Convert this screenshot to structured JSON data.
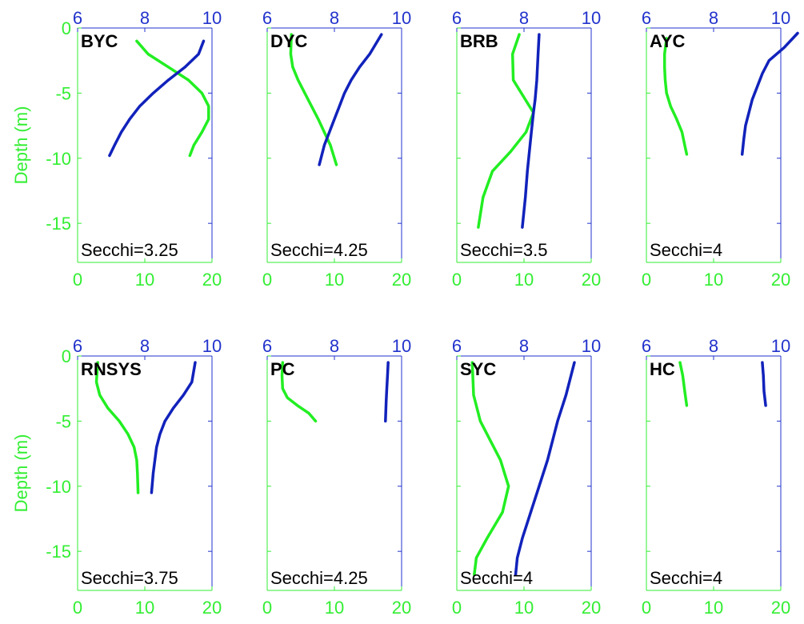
{
  "chart_data": {
    "type": "line",
    "ylabel": "Depth (m)",
    "ylim": [
      -18,
      0
    ],
    "ytick_values": [
      0,
      -5,
      -10,
      -15
    ],
    "ytick_labels": [
      "0",
      "-5",
      "-10",
      "-15"
    ],
    "bottom_axis": {
      "xlim": [
        0,
        20
      ],
      "tick_values": [
        0,
        10,
        20
      ],
      "tick_labels": [
        "0",
        "10",
        "20"
      ]
    },
    "top_axis": {
      "xlim": [
        6,
        10
      ],
      "tick_values": [
        6,
        8,
        10
      ],
      "tick_labels": [
        "6",
        "8",
        "10"
      ]
    },
    "grid": false,
    "colors": {
      "bottom_series": "#22ee22",
      "top_series": "#1122bb",
      "bottom_axis": "#33ee33",
      "top_axis": "#2233cc"
    },
    "panels": [
      {
        "label": "BYC",
        "annotation": "Secchi=3.25",
        "green_series": {
          "x": [
            8.8,
            10.5,
            13.5,
            16.5,
            18.5,
            19.5,
            19.5,
            18.5,
            17.3,
            16.7
          ],
          "y": [
            -1,
            -2,
            -3,
            -4,
            -5,
            -6,
            -7,
            -8,
            -9,
            -9.8
          ]
        },
        "blue_series": {
          "x": [
            9.75,
            9.6,
            9.2,
            8.7,
            8.25,
            7.85,
            7.55,
            7.3,
            7.1,
            6.95
          ],
          "y": [
            -1,
            -2,
            -3,
            -4,
            -5,
            -6,
            -7,
            -8,
            -9,
            -9.8
          ]
        }
      },
      {
        "label": "DYC",
        "annotation": "Secchi=4.25",
        "green_series": {
          "x": [
            3.6,
            3.5,
            3.8,
            4.6,
            5.6,
            6.6,
            7.6,
            8.5,
            9.4,
            10.3
          ],
          "y": [
            -0.5,
            -2,
            -3,
            -4,
            -5,
            -6,
            -7,
            -8,
            -9,
            -10.5
          ]
        },
        "blue_series": {
          "x": [
            9.4,
            9.05,
            8.75,
            8.5,
            8.3,
            8.15,
            8.0,
            7.85,
            7.7,
            7.55
          ],
          "y": [
            -0.5,
            -2,
            -3,
            -4,
            -5,
            -6,
            -7,
            -8,
            -9,
            -10.5
          ]
        }
      },
      {
        "label": "BRB",
        "annotation": "Secchi=3.5",
        "green_series": {
          "x": [
            9.3,
            8.3,
            8.4,
            10.2,
            11.4,
            10.3,
            8.0,
            5.3,
            3.9,
            3.2
          ],
          "y": [
            -0.5,
            -2,
            -4,
            -5.5,
            -6.5,
            -8,
            -9.5,
            -11,
            -13,
            -15.3
          ]
        },
        "blue_series": {
          "x": [
            8.45,
            8.42,
            8.38,
            8.33,
            8.28,
            8.22,
            8.16,
            8.1,
            8.04,
            7.95
          ],
          "y": [
            -0.5,
            -2,
            -4,
            -5.5,
            -6.5,
            -8,
            -9.5,
            -11,
            -13,
            -15.3
          ]
        }
      },
      {
        "label": "AYC",
        "annotation": "Secchi=4",
        "green_series": {
          "x": [
            3.0,
            2.7,
            2.7,
            2.8,
            3.0,
            3.6,
            4.5,
            5.3,
            5.7,
            6.0
          ],
          "y": [
            -0.8,
            -2,
            -3,
            -4,
            -5,
            -6,
            -7,
            -8,
            -9,
            -9.7
          ]
        },
        "blue_series": {
          "x": [
            10.5,
            10.1,
            9.65,
            9.45,
            9.3,
            9.15,
            9.05,
            8.95,
            8.9,
            8.85
          ],
          "y": [
            -0.4,
            -1.5,
            -2.5,
            -3.5,
            -4.5,
            -5.5,
            -6.5,
            -7.5,
            -8.5,
            -9.7
          ]
        }
      },
      {
        "label": "RNSYS",
        "annotation": "Secchi=3.75",
        "green_series": {
          "x": [
            3.0,
            2.8,
            3.3,
            4.5,
            6.2,
            7.5,
            8.4,
            8.8,
            8.9,
            9.0
          ],
          "y": [
            -0.5,
            -2,
            -3,
            -4,
            -5,
            -6,
            -7,
            -8,
            -9,
            -10.5
          ]
        },
        "blue_series": {
          "x": [
            9.5,
            9.4,
            9.15,
            8.85,
            8.6,
            8.45,
            8.35,
            8.3,
            8.25,
            8.2
          ],
          "y": [
            -0.5,
            -2,
            -3,
            -4,
            -5,
            -6,
            -7,
            -8,
            -9,
            -10.5
          ]
        }
      },
      {
        "label": "PC",
        "annotation": "Secchi=4.25",
        "green_series": {
          "x": [
            2.3,
            2.2,
            2.3,
            3.0,
            4.5,
            6.2,
            7.2
          ],
          "y": [
            -0.5,
            -1.5,
            -2.5,
            -3.2,
            -3.8,
            -4.4,
            -5.0
          ]
        },
        "blue_series": {
          "x": [
            9.6,
            9.58,
            9.56,
            9.54,
            9.52
          ],
          "y": [
            -0.5,
            -1.5,
            -2.5,
            -3.5,
            -5.0
          ]
        }
      },
      {
        "label": "SYC",
        "annotation": "Secchi=4",
        "green_series": {
          "x": [
            2.3,
            2.5,
            3.5,
            6.5,
            7.7,
            6.8,
            4.5,
            2.9,
            2.6
          ],
          "y": [
            -0.5,
            -3,
            -5,
            -8,
            -10,
            -12,
            -14,
            -15.5,
            -16.8
          ]
        },
        "blue_series": {
          "x": [
            9.5,
            9.25,
            9.0,
            8.7,
            8.45,
            8.2,
            7.95,
            7.8,
            7.75
          ],
          "y": [
            -0.5,
            -3,
            -5,
            -8,
            -10,
            -12,
            -14,
            -15.5,
            -16.8
          ]
        }
      },
      {
        "label": "HC",
        "annotation": "Secchi=4",
        "green_series": {
          "x": [
            5.0,
            5.4,
            5.7,
            6.0
          ],
          "y": [
            -0.5,
            -1.5,
            -2.7,
            -3.8
          ]
        },
        "blue_series": {
          "x": [
            9.45,
            9.48,
            9.5,
            9.55
          ],
          "y": [
            -0.5,
            -1.5,
            -2.7,
            -3.8
          ]
        }
      }
    ]
  }
}
